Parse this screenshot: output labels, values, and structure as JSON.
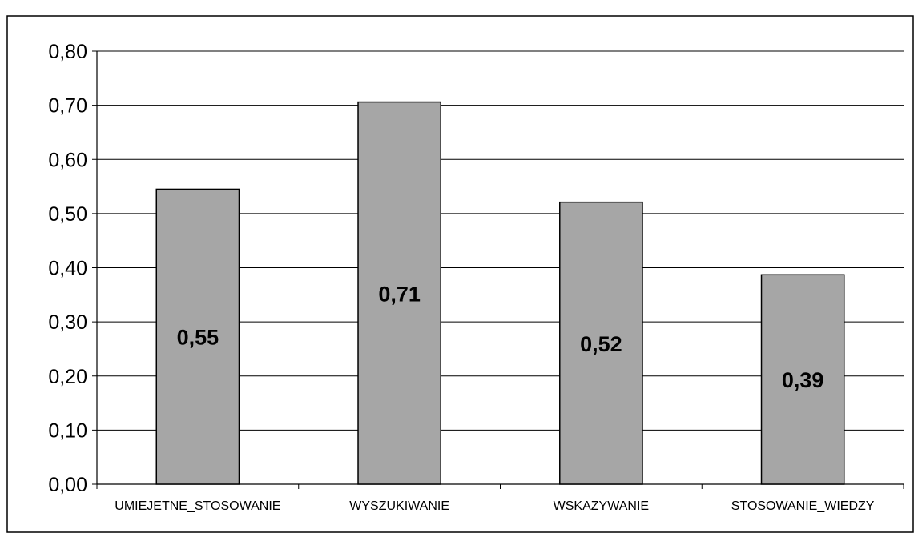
{
  "chart_data": {
    "type": "bar",
    "title": "",
    "xlabel": "",
    "ylabel": "",
    "categories": [
      "UMIEJETNE_STOSOWANIE",
      "WYSZUKIWANIE",
      "WSKAZYWANIE",
      "STOSOWANIE_WIEDZY"
    ],
    "values": [
      0.545,
      0.706,
      0.521,
      0.387
    ],
    "data_labels": [
      "0,55",
      "0,71",
      "0,52",
      "0,39"
    ],
    "ylim": [
      0,
      0.8
    ],
    "yticks": [
      0,
      0.1,
      0.2,
      0.3,
      0.4,
      0.5,
      0.6,
      0.7,
      0.8
    ],
    "ytick_labels": [
      "0,00",
      "0,10",
      "0,20",
      "0,30",
      "0,40",
      "0,50",
      "0,60",
      "0,70",
      "0,80"
    ],
    "grid": true,
    "legend": "none",
    "colors": {
      "bar_fill": "#a6a6a6",
      "bar_stroke": "#000000",
      "grid": "#000000",
      "frame": "#000000"
    }
  }
}
